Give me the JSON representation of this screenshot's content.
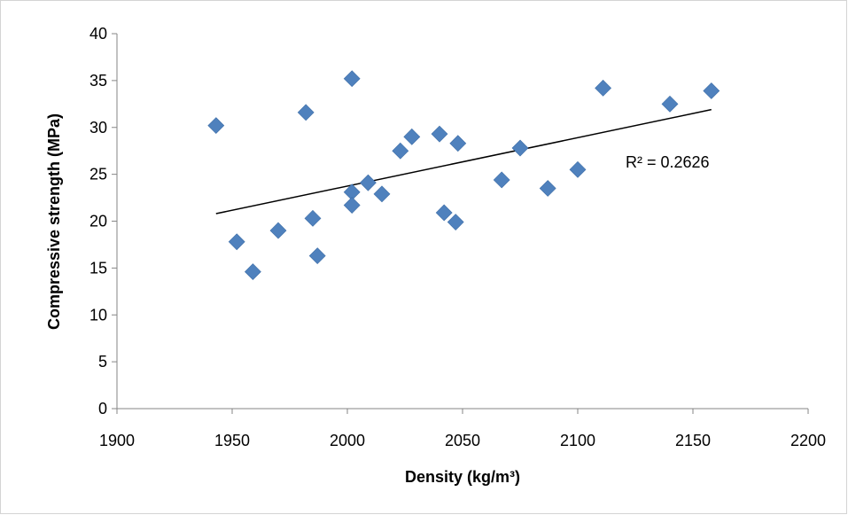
{
  "chart_data": {
    "type": "scatter",
    "title": "",
    "xlabel": "Density (kg/m³)",
    "ylabel": "Compressive strength (MPa)",
    "xlim": [
      1900,
      2200
    ],
    "ylim": [
      0,
      40
    ],
    "xticks": [
      "1900",
      "1950",
      "2000",
      "2050",
      "2100",
      "2150",
      "2200"
    ],
    "yticks": [
      "0",
      "5",
      "10",
      "15",
      "20",
      "25",
      "30",
      "35",
      "40"
    ],
    "grid": false,
    "legend": "none",
    "marker_color": "#4f81bd",
    "trendline_color": "#000000",
    "series": [
      {
        "marker": "diamond",
        "points": [
          [
            1943,
            30.2
          ],
          [
            1952,
            17.8
          ],
          [
            1959,
            14.6
          ],
          [
            1970,
            19.0
          ],
          [
            1982,
            31.6
          ],
          [
            1985,
            20.3
          ],
          [
            1987,
            16.3
          ],
          [
            2002,
            35.2
          ],
          [
            2002,
            23.1
          ],
          [
            2002,
            21.7
          ],
          [
            2009,
            24.1
          ],
          [
            2015,
            22.9
          ],
          [
            2023,
            27.5
          ],
          [
            2028,
            29.0
          ],
          [
            2040,
            29.3
          ],
          [
            2042,
            20.9
          ],
          [
            2047,
            19.9
          ],
          [
            2048,
            28.3
          ],
          [
            2067,
            24.4
          ],
          [
            2075,
            27.8
          ],
          [
            2087,
            23.5
          ],
          [
            2100,
            25.5
          ],
          [
            2111,
            34.2
          ],
          [
            2140,
            32.5
          ],
          [
            2158,
            33.9
          ]
        ]
      }
    ],
    "trendline": {
      "type": "linear",
      "x": [
        1943,
        2158
      ],
      "y": [
        20.8,
        31.9
      ]
    },
    "annotation": "R² = 0.2626"
  }
}
